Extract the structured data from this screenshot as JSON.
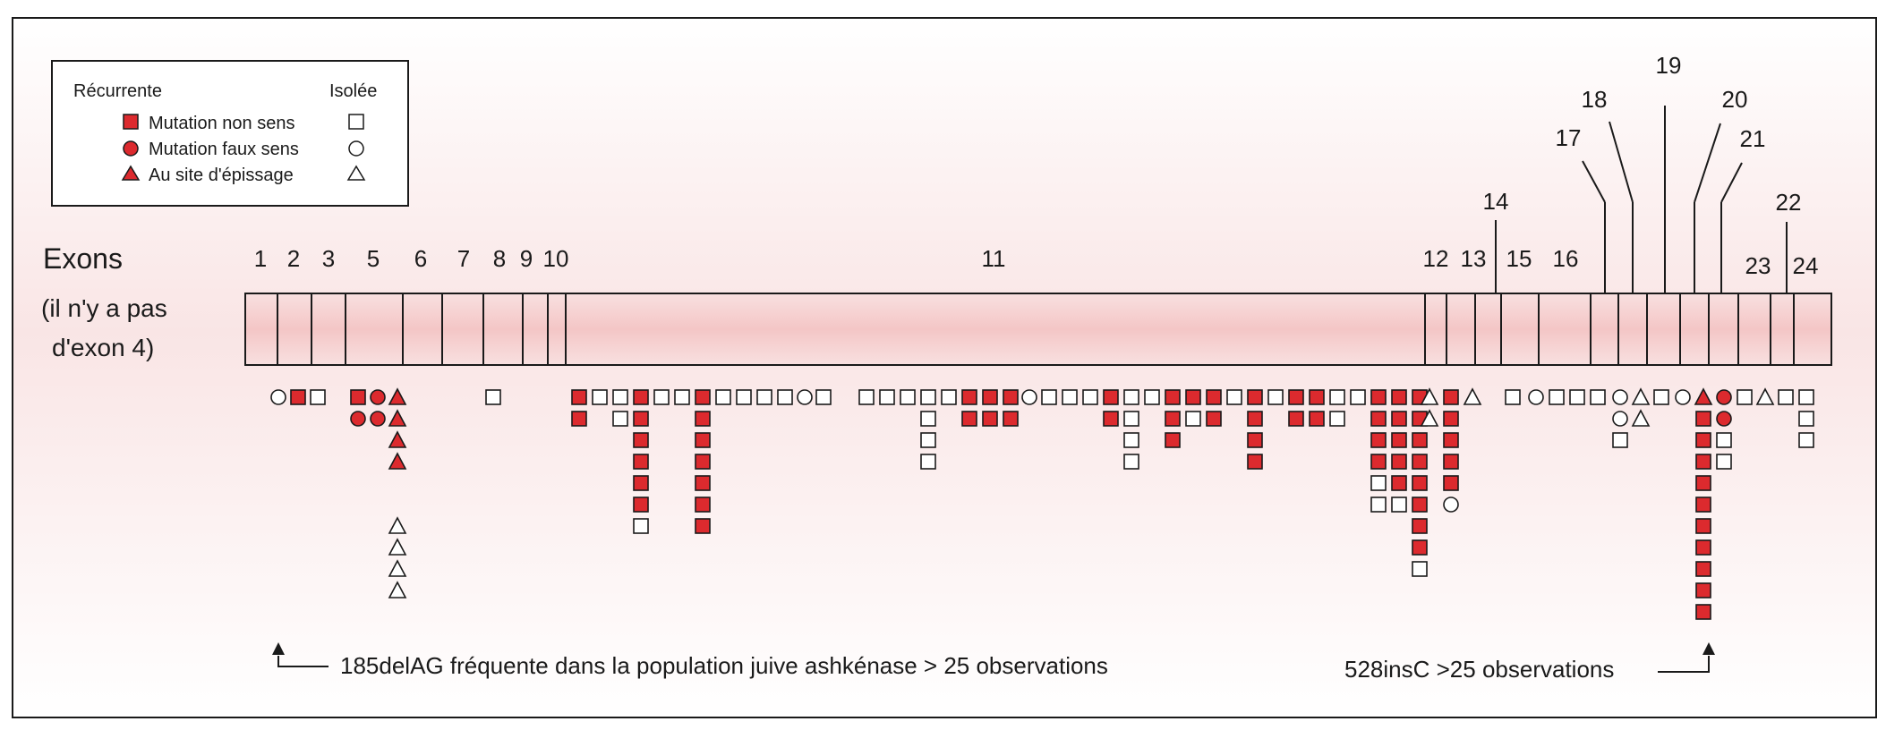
{
  "colors": {
    "red": "#dc2a2e",
    "pink": "#f7d7d7",
    "background": "#faf3f3",
    "stroke": "#1a1a1a"
  },
  "legend": {
    "recurrent_header": "Récurrente",
    "isolated_header": "Isolée",
    "items": [
      {
        "shape": "square",
        "label": "Mutation non sens"
      },
      {
        "shape": "circle",
        "label": "Mutation faux sens"
      },
      {
        "shape": "triangle",
        "label": "Au site d'épissage"
      }
    ]
  },
  "exon_title": "Exons",
  "exon_note": [
    "(il n'y a pas",
    "d'exon 4)"
  ],
  "exons": [
    "1",
    "2",
    "3",
    "5",
    "6",
    "7",
    "8",
    "9",
    "10",
    "11",
    "12",
    "13",
    "14",
    "15",
    "16",
    "17",
    "18",
    "19",
    "20",
    "21",
    "22",
    "23",
    "24"
  ],
  "annotations": {
    "left": "185delAG fréquente dans la population juive ashkénase > 25 observations",
    "right": "528insC >25 observations"
  },
  "mutation_columns": [
    [
      "oc"
    ],
    [
      "rs"
    ],
    [
      "os"
    ],
    [
      "rs",
      "rc"
    ],
    [
      "rc",
      "rc"
    ],
    [
      "rt",
      "rt",
      "rt",
      "rt",
      "",
      "",
      "ot",
      "ot",
      "ot",
      "ot"
    ],
    [
      "os"
    ],
    [
      "rs",
      "rs"
    ],
    [
      "os"
    ],
    [
      "os",
      "os"
    ],
    [
      "rs",
      "rs",
      "rs",
      "rs",
      "rs",
      "rs",
      "os"
    ],
    [
      "os"
    ],
    [
      "os"
    ],
    [
      "rs",
      "rs",
      "rs",
      "rs",
      "rs",
      "rs",
      "rs"
    ],
    [
      "os"
    ],
    [
      "os"
    ],
    [
      "os"
    ],
    [
      "os"
    ],
    [
      "oc"
    ],
    [
      "os"
    ],
    [
      "os"
    ],
    [
      "os"
    ],
    [
      "os"
    ],
    [
      "os",
      "os",
      "os",
      "os"
    ],
    [
      "os"
    ],
    [
      "rs",
      "rs"
    ],
    [
      "rs",
      "rs"
    ],
    [
      "rs",
      "rs"
    ],
    [
      "oc"
    ],
    [
      "os"
    ],
    [
      "os"
    ],
    [
      "os"
    ],
    [
      "rs",
      "rs"
    ],
    [
      "os",
      "os",
      "os",
      "os"
    ],
    [
      "os"
    ],
    [
      "rs",
      "rs",
      "rs"
    ],
    [
      "rs",
      "os"
    ],
    [
      "rs",
      "rs"
    ],
    [
      "os"
    ],
    [
      "rs",
      "rs",
      "rs",
      "rs"
    ],
    [
      "os"
    ],
    [
      "rs",
      "rs"
    ],
    [
      "rs",
      "rs"
    ],
    [
      "os",
      "os"
    ],
    [
      "os"
    ],
    [
      "rs",
      "rs",
      "rs",
      "rs",
      "os",
      "os"
    ],
    [
      "rs",
      "rs",
      "rs",
      "rs",
      "rs",
      "os"
    ],
    [
      "rs",
      "rs",
      "rs",
      "rs",
      "rs",
      "rs",
      "rs",
      "rs",
      "os"
    ],
    [
      "ot",
      "ot"
    ],
    [
      "rs",
      "rs",
      "rs",
      "rs",
      "rs",
      "oc"
    ],
    [
      "ot"
    ],
    [
      "os"
    ],
    [
      "oc"
    ],
    [
      "os"
    ],
    [
      "os"
    ],
    [
      "os"
    ],
    [
      "oc",
      "oc",
      "os"
    ],
    [
      "ot",
      "ot"
    ],
    [
      "os"
    ],
    [
      "oc"
    ],
    [
      "rt",
      "rs",
      "rs",
      "rs",
      "rs",
      "rs",
      "rs",
      "rs",
      "rs",
      "rs",
      "rs"
    ],
    [
      "rc",
      "rc",
      "os",
      "os"
    ],
    [
      "os"
    ],
    [
      "ot"
    ],
    [
      "os"
    ],
    [
      "os",
      "os",
      "os"
    ]
  ]
}
